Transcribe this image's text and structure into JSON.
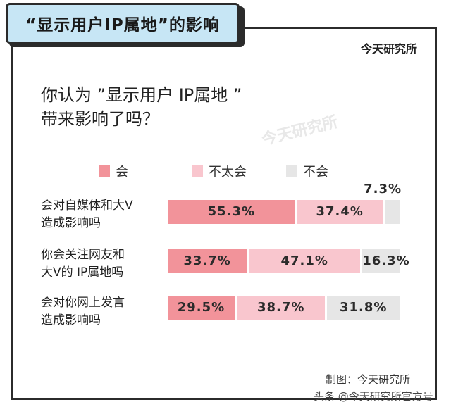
{
  "title": "“显示用户IP属地”的影响",
  "brand": "今天研究所",
  "question": [
    "你认为 ”显示用户 IP属地 ”",
    "带来影响了吗？"
  ],
  "watermark": "今天研究所",
  "credit": "制图：今天研究所",
  "footer_watermark": "头条 @今天研究所官方号",
  "colors": {
    "hui": "#f2939a",
    "butaihui": "#f9c6ce",
    "buhui": "#e6e6e6"
  },
  "chart_data": {
    "type": "bar",
    "orientation": "horizontal",
    "stacked": true,
    "percent": true,
    "categories": [
      [
        "会对自媒体和大V",
        "造成影响吗"
      ],
      [
        "你会关注网友和",
        "大V的 IP属地吗"
      ],
      [
        "会对你网上发言",
        "造成影响吗"
      ]
    ],
    "series": [
      {
        "name": "会",
        "values": [
          55.3,
          33.7,
          29.5
        ],
        "labels": [
          "55.3%",
          "33.7%",
          "29.5%"
        ]
      },
      {
        "name": "不太会",
        "values": [
          37.4,
          47.1,
          38.7
        ],
        "labels": [
          "37.4%",
          "47.1%",
          "38.7%"
        ]
      },
      {
        "name": "不会",
        "values": [
          7.3,
          16.3,
          31.8
        ],
        "labels": [
          "7.3%",
          "16.3%",
          "31.8%"
        ]
      }
    ],
    "legend_position": "top",
    "grid": false
  }
}
